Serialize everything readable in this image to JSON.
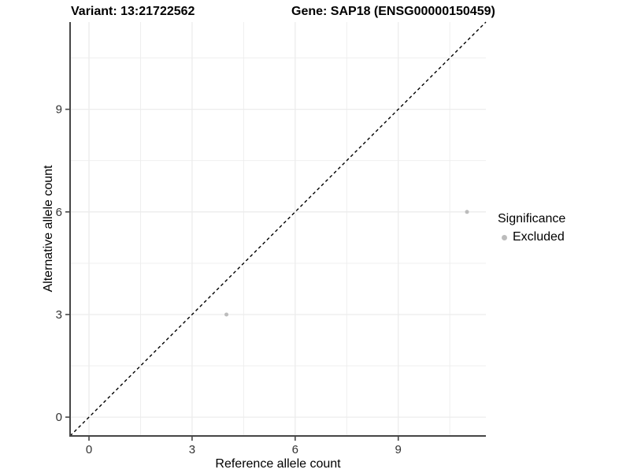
{
  "titles": {
    "variant": "Variant: 13:21722562",
    "gene": "Gene: SAP18 (ENSG00000150459)"
  },
  "chart_data": {
    "type": "scatter",
    "xlabel": "Reference allele count",
    "ylabel": "Alternative allele count",
    "xlim": [
      -0.55,
      11.55
    ],
    "ylim": [
      -0.55,
      11.55
    ],
    "x_ticks": [
      0,
      3,
      6,
      9
    ],
    "y_ticks": [
      0,
      3,
      6,
      9
    ],
    "x_tick_labels": [
      "0",
      "3",
      "6",
      "9"
    ],
    "y_tick_labels": [
      "0",
      "3",
      "6",
      "9"
    ],
    "x_minor_ticks": [
      1.5,
      4.5,
      7.5,
      10.5
    ],
    "y_minor_ticks": [
      1.5,
      4.5,
      7.5,
      10.5
    ],
    "grid": true,
    "identity_line": {
      "style": "dashed",
      "from": [
        -0.55,
        -0.55
      ],
      "to": [
        11.55,
        11.55
      ],
      "color": "#000000"
    },
    "series": [
      {
        "name": "Excluded",
        "color": "#bcbcbc",
        "points": [
          {
            "x": 4,
            "y": 3
          },
          {
            "x": 11,
            "y": 6
          }
        ]
      }
    ],
    "legend": {
      "title": "Significance",
      "position": "right",
      "entries": [
        {
          "label": "Excluded",
          "color": "#bcbcbc"
        }
      ]
    },
    "colors": {
      "grid_major": "#ececec",
      "grid_minor": "#ededed",
      "axis_line": "#464646",
      "tick_mark": "#464646",
      "tick_label": "#333333",
      "text": "#000000",
      "background": "#ffffff"
    }
  }
}
